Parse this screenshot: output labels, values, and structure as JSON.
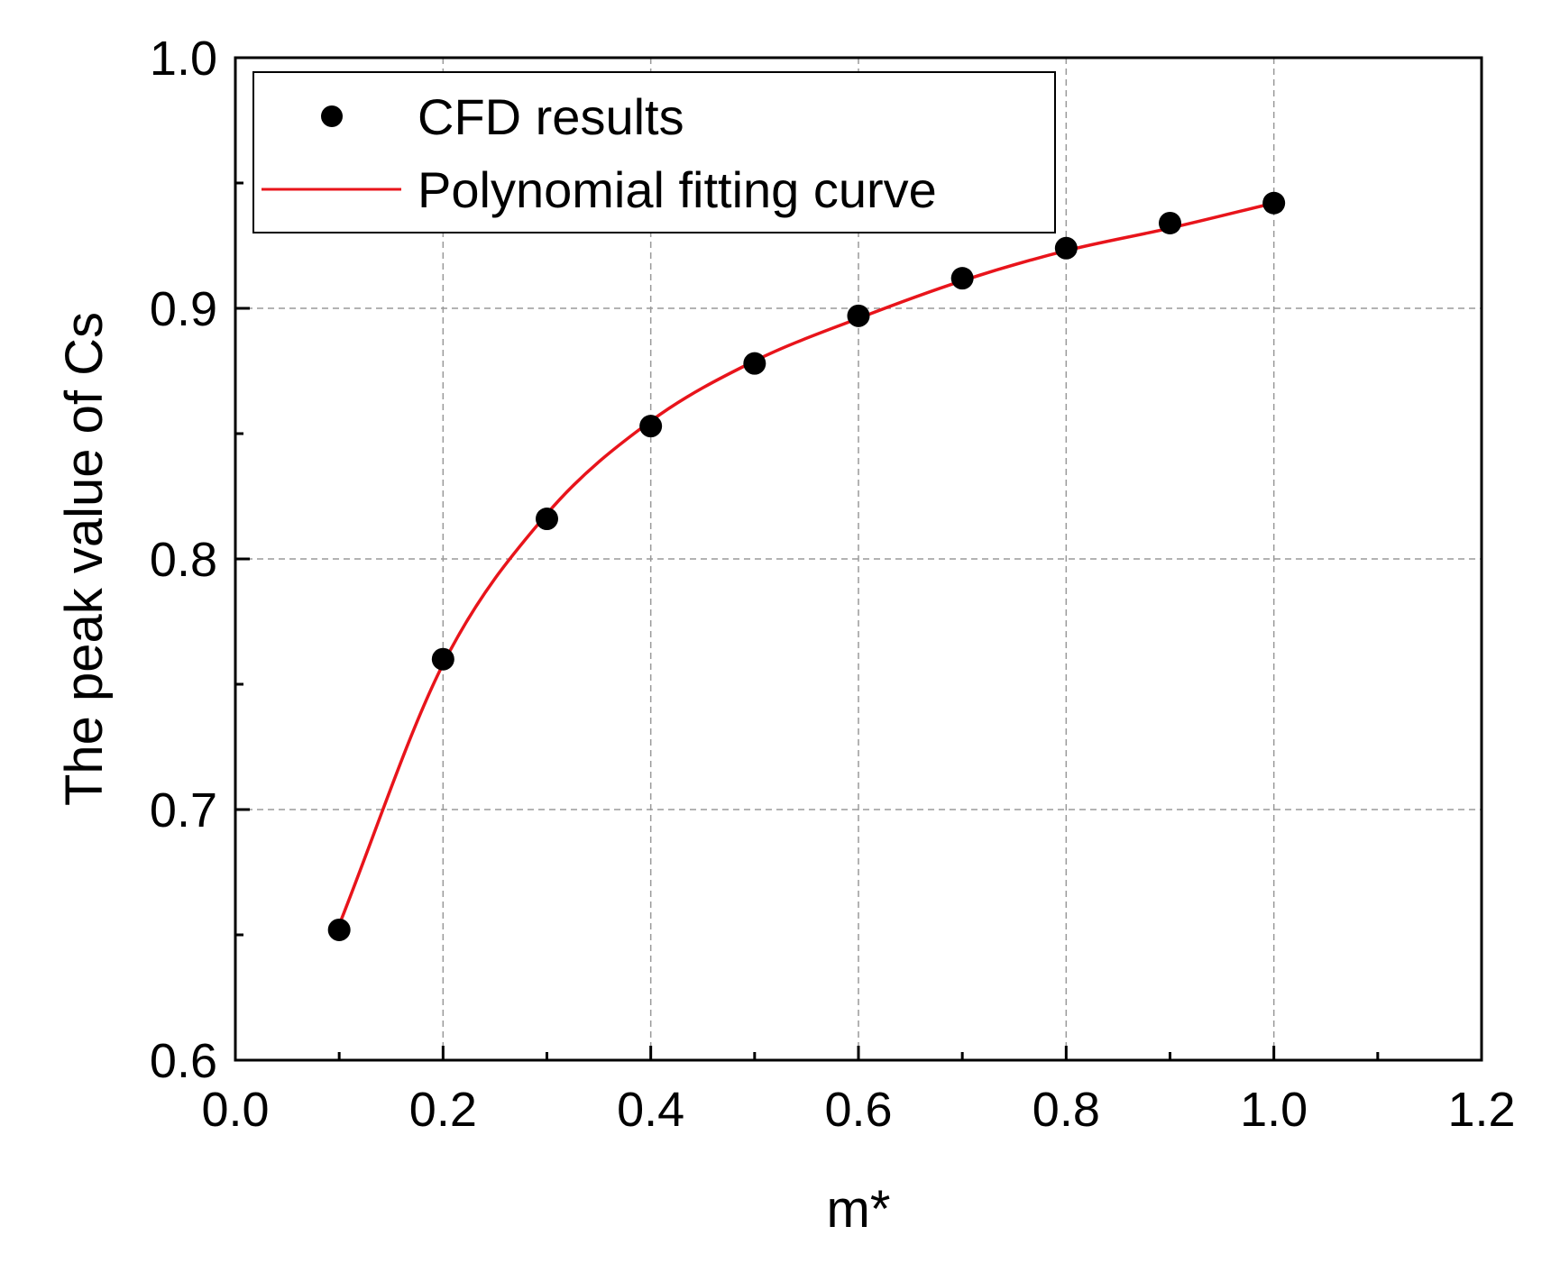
{
  "chart_data": {
    "type": "scatter",
    "title": "",
    "xlabel": "m*",
    "ylabel": "The peak value of Cs",
    "xlim": [
      0.0,
      1.2
    ],
    "ylim": [
      0.6,
      1.0
    ],
    "xticks": [
      "0.0",
      "0.2",
      "0.4",
      "0.6",
      "0.8",
      "1.0",
      "1.2"
    ],
    "yticks": [
      "0.6",
      "0.7",
      "0.8",
      "0.9",
      "1.0"
    ],
    "grid": true,
    "legend_position": "top-left",
    "series": [
      {
        "name": "CFD results",
        "kind": "scatter",
        "color": "#000000",
        "x": [
          0.1,
          0.2,
          0.3,
          0.4,
          0.5,
          0.6,
          0.7,
          0.8,
          0.9,
          1.0
        ],
        "y": [
          0.652,
          0.76,
          0.816,
          0.853,
          0.878,
          0.897,
          0.912,
          0.924,
          0.934,
          0.942
        ]
      },
      {
        "name": "Polynomial fitting curve",
        "kind": "line",
        "color": "#e8141b",
        "x": [
          0.1,
          0.2,
          0.3,
          0.4,
          0.5,
          0.6,
          0.7,
          0.8,
          0.9,
          1.0
        ],
        "y": [
          0.654,
          0.758,
          0.818,
          0.855,
          0.879,
          0.896,
          0.911,
          0.923,
          0.932,
          0.942
        ]
      }
    ]
  }
}
